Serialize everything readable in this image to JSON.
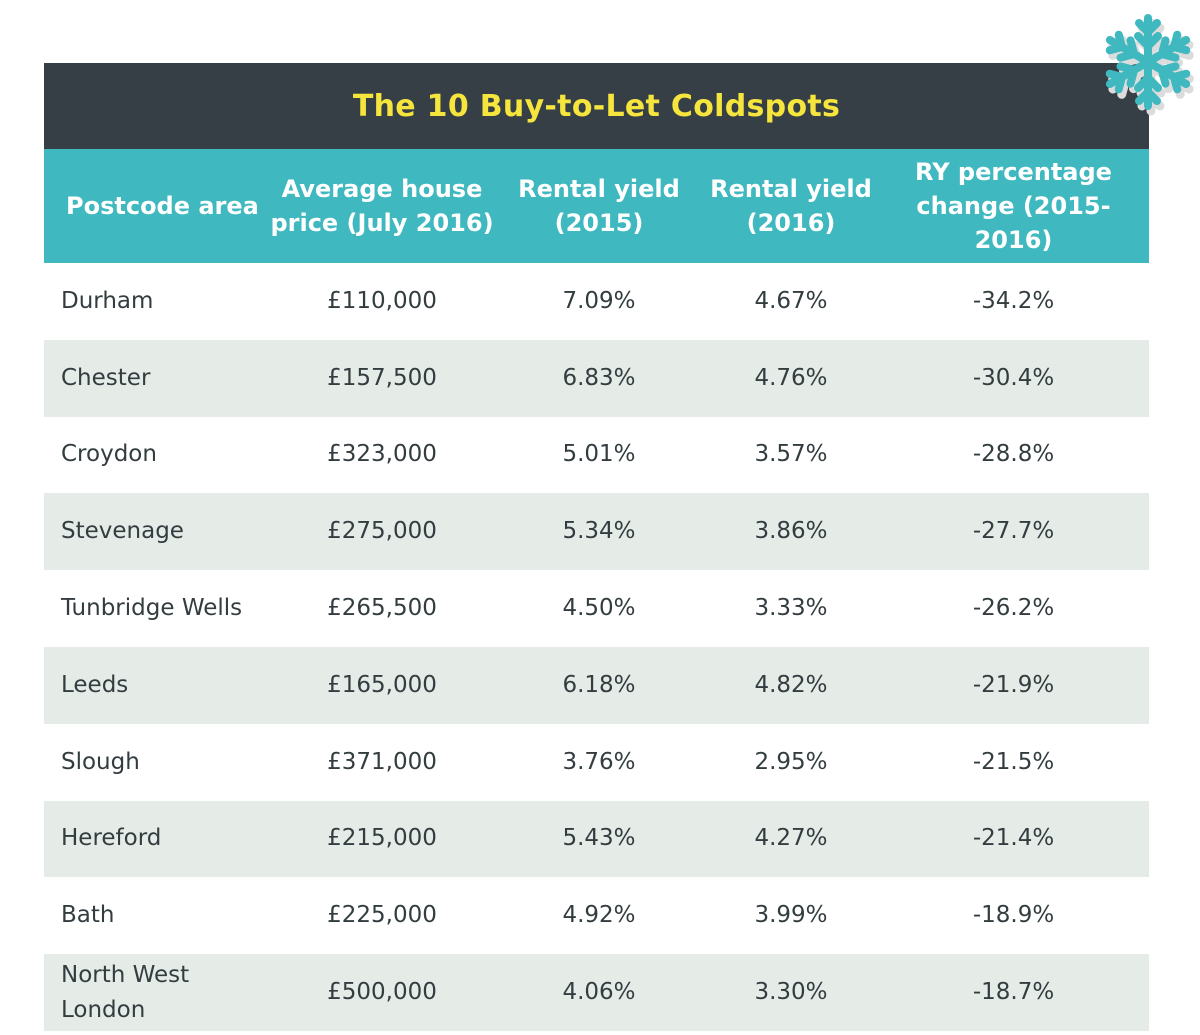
{
  "chart_data": {
    "type": "table",
    "title": "The 10 Buy-to-Let Coldspots",
    "columns": [
      "Postcode area",
      "Average house\nprice (July 2016)",
      "Rental yield\n(2015)",
      "Rental yield\n(2016)",
      "RY percentage\nchange (2015-2016)"
    ],
    "rows": [
      [
        "Durham",
        "£110,000",
        "7.09%",
        "4.67%",
        "-34.2%"
      ],
      [
        "Chester",
        "£157,500",
        "6.83%",
        "4.76%",
        "-30.4%"
      ],
      [
        "Croydon",
        "£323,000",
        "5.01%",
        "3.57%",
        "-28.8%"
      ],
      [
        "Stevenage",
        "£275,000",
        "5.34%",
        "3.86%",
        "-27.7%"
      ],
      [
        "Tunbridge Wells",
        "£265,500",
        "4.50%",
        "3.33%",
        "-26.2%"
      ],
      [
        "Leeds",
        "£165,000",
        "6.18%",
        "4.82%",
        "-21.9%"
      ],
      [
        "Slough",
        "£371,000",
        "3.76%",
        "2.95%",
        "-21.5%"
      ],
      [
        "Hereford",
        "£215,000",
        "5.43%",
        "4.27%",
        "-21.4%"
      ],
      [
        "Bath",
        "£225,000",
        "4.92%",
        "3.99%",
        "-18.9%"
      ],
      [
        "North West\nLondon",
        "£500,000",
        "4.06%",
        "3.30%",
        "-18.7%"
      ]
    ]
  },
  "colors": {
    "title_bg": "#363f45",
    "title_text": "#f5e53d",
    "header_bg": "#3fb8bf",
    "header_text": "#ffffff",
    "alt_row_bg": "#e5ebe7",
    "body_text": "#333d40",
    "snowflake": "#3fb8bf"
  },
  "decoration": {
    "icon": "snowflake-icon"
  }
}
